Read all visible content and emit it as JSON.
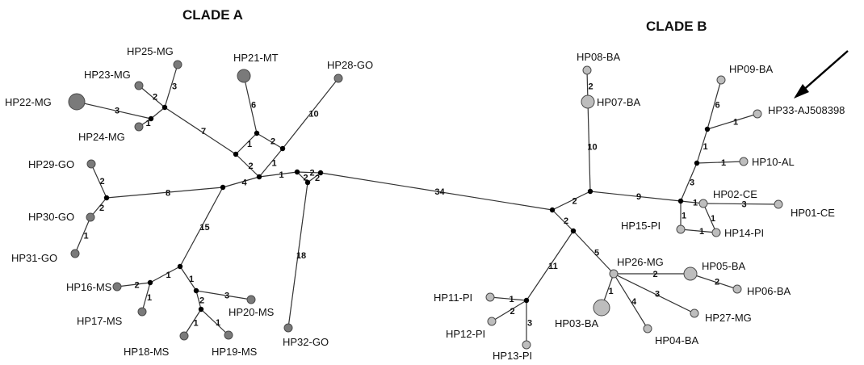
{
  "clades": [
    {
      "id": "cA",
      "label": "CLADE A"
    },
    {
      "id": "cB",
      "label": "CLADE B"
    }
  ],
  "colors": {
    "clade_a": "#7a7a7a",
    "clade_b": "#bdbdbd",
    "stroke": "#4a4a4a",
    "edge": "#333333"
  },
  "haplotypes": [
    {
      "id": "HP22-MG",
      "clade": "A",
      "freq": 3
    },
    {
      "id": "HP23-MG",
      "clade": "A",
      "freq": 1
    },
    {
      "id": "HP24-MG",
      "clade": "A",
      "freq": 1
    },
    {
      "id": "HP25-MG",
      "clade": "A",
      "freq": 1
    },
    {
      "id": "HP21-MT",
      "clade": "A",
      "freq": 2
    },
    {
      "id": "HP28-GO",
      "clade": "A",
      "freq": 1
    },
    {
      "id": "HP29-GO",
      "clade": "A",
      "freq": 1
    },
    {
      "id": "HP30-GO",
      "clade": "A",
      "freq": 1
    },
    {
      "id": "HP31-GO",
      "clade": "A",
      "freq": 1
    },
    {
      "id": "HP16-MS",
      "clade": "A",
      "freq": 1
    },
    {
      "id": "HP17-MS",
      "clade": "A",
      "freq": 1
    },
    {
      "id": "HP18-MS",
      "clade": "A",
      "freq": 1
    },
    {
      "id": "HP19-MS",
      "clade": "A",
      "freq": 1
    },
    {
      "id": "HP20-MS",
      "clade": "A",
      "freq": 1
    },
    {
      "id": "HP32-GO",
      "clade": "A",
      "freq": 1
    },
    {
      "id": "HP08-BA",
      "clade": "B",
      "freq": 1
    },
    {
      "id": "HP07-BA",
      "clade": "B",
      "freq": 2
    },
    {
      "id": "HP09-BA",
      "clade": "B",
      "freq": 1
    },
    {
      "id": "HP33-AJ508398",
      "clade": "B",
      "freq": 1
    },
    {
      "id": "HP10-AL",
      "clade": "B",
      "freq": 1
    },
    {
      "id": "HP02-CE",
      "clade": "B",
      "freq": 1
    },
    {
      "id": "HP01-CE",
      "clade": "B",
      "freq": 1
    },
    {
      "id": "HP15-PI",
      "clade": "B",
      "freq": 1
    },
    {
      "id": "HP14-PI",
      "clade": "B",
      "freq": 1
    },
    {
      "id": "HP26-MG",
      "clade": "B",
      "freq": 1
    },
    {
      "id": "HP05-BA",
      "clade": "B",
      "freq": 2
    },
    {
      "id": "HP06-BA",
      "clade": "B",
      "freq": 1
    },
    {
      "id": "HP27-MG",
      "clade": "B",
      "freq": 1
    },
    {
      "id": "HP04-BA",
      "clade": "B",
      "freq": 1
    },
    {
      "id": "HP03-BA",
      "clade": "B",
      "freq": 3
    },
    {
      "id": "HP11-PI",
      "clade": "B",
      "freq": 1
    },
    {
      "id": "HP12-PI",
      "clade": "B",
      "freq": 1
    },
    {
      "id": "HP13-PI",
      "clade": "B",
      "freq": 1
    }
  ],
  "edges": [
    {
      "a": "HP22-MG",
      "b": "hubAmg",
      "steps": "3"
    },
    {
      "a": "HP24-MG",
      "b": "hubAmg",
      "steps": "1"
    },
    {
      "a": "HP23-MG",
      "b": "hubMG",
      "steps": "2"
    },
    {
      "a": "HP25-MG",
      "b": "hubMG",
      "steps": "3"
    },
    {
      "a": "hubAmg",
      "b": "hubMG",
      "steps": ""
    },
    {
      "a": "hubMG",
      "b": "jA1",
      "steps": "7"
    },
    {
      "a": "jA1",
      "b": "jA2",
      "steps": "2"
    },
    {
      "a": "HP21-MT",
      "b": "jMT",
      "steps": "6"
    },
    {
      "a": "jMT",
      "b": "jA1",
      "steps": "1"
    },
    {
      "a": "jMT",
      "b": "jGO",
      "steps": "2"
    },
    {
      "a": "HP28-GO",
      "b": "jGO",
      "steps": "10"
    },
    {
      "a": "jGO",
      "b": "jA2",
      "steps": "1"
    },
    {
      "a": "HP29-GO",
      "b": "jGOs",
      "steps": "2"
    },
    {
      "a": "HP30-GO",
      "b": "jGOs",
      "steps": "2"
    },
    {
      "a": "HP31-GO",
      "b": "HP30-GO",
      "steps": "1"
    },
    {
      "a": "jGOs",
      "b": "jA3",
      "steps": "8"
    },
    {
      "a": "jA3",
      "b": "jA2",
      "steps": "4"
    },
    {
      "a": "jA3",
      "b": "jMS",
      "steps": "15"
    },
    {
      "a": "HP16-MS",
      "b": "jMS2",
      "steps": "2"
    },
    {
      "a": "HP17-MS",
      "b": "jMS2",
      "steps": "1"
    },
    {
      "a": "jMS2",
      "b": "jMS",
      "steps": "1"
    },
    {
      "a": "jMS",
      "b": "jMS3",
      "steps": "1"
    },
    {
      "a": "HP20-MS",
      "b": "jMS3",
      "steps": "3"
    },
    {
      "a": "jMS3",
      "b": "jMS4",
      "steps": "2"
    },
    {
      "a": "HP18-MS",
      "b": "jMS4",
      "steps": "1"
    },
    {
      "a": "HP19-MS",
      "b": "jMS4",
      "steps": "1"
    },
    {
      "a": "jA2",
      "b": "jA4",
      "steps": "1"
    },
    {
      "a": "jA4",
      "b": "jA5",
      "steps": "2"
    },
    {
      "a": "jA4",
      "b": "jA6",
      "steps": "2"
    },
    {
      "a": "jA5",
      "b": "jA6",
      "steps": "2"
    },
    {
      "a": "HP32-GO",
      "b": "jA6",
      "steps": "18"
    },
    {
      "a": "jA5",
      "b": "jB1",
      "steps": "34"
    },
    {
      "a": "jB1",
      "b": "jB2",
      "steps": "2"
    },
    {
      "a": "jB2",
      "b": "jB3",
      "steps": "9"
    },
    {
      "a": "HP07-BA",
      "b": "jB2",
      "steps": "10"
    },
    {
      "a": "HP08-BA",
      "b": "HP07-BA",
      "steps": "2"
    },
    {
      "a": "jB3",
      "b": "HP02-CE",
      "steps": "1"
    },
    {
      "a": "HP02-CE",
      "b": "HP01-CE",
      "steps": "3"
    },
    {
      "a": "HP02-CE",
      "b": "HP14-PI",
      "steps": "1"
    },
    {
      "a": "jB3",
      "b": "HP15-PI",
      "steps": "1"
    },
    {
      "a": "HP15-PI",
      "b": "HP14-PI",
      "steps": "1"
    },
    {
      "a": "jB3",
      "b": "jB4",
      "steps": "3"
    },
    {
      "a": "jB4",
      "b": "HP10-AL",
      "steps": "1"
    },
    {
      "a": "jB4",
      "b": "jB5",
      "steps": "1"
    },
    {
      "a": "HP09-BA",
      "b": "jB5",
      "steps": "6"
    },
    {
      "a": "jB5",
      "b": "HP33-AJ508398",
      "steps": "1"
    },
    {
      "a": "jB1",
      "b": "jB6",
      "steps": "2"
    },
    {
      "a": "jB6",
      "b": "jB7",
      "steps": "11"
    },
    {
      "a": "HP11-PI",
      "b": "jB7",
      "steps": "1"
    },
    {
      "a": "HP12-PI",
      "b": "jB7",
      "steps": "2"
    },
    {
      "a": "HP13-PI",
      "b": "jB7",
      "steps": "3"
    },
    {
      "a": "jB6",
      "b": "HP26-MG",
      "steps": "5"
    },
    {
      "a": "HP26-MG",
      "b": "HP03-BA",
      "steps": "1"
    },
    {
      "a": "HP26-MG",
      "b": "HP04-BA",
      "steps": "4"
    },
    {
      "a": "HP26-MG",
      "b": "HP27-MG",
      "steps": "3"
    },
    {
      "a": "HP26-MG",
      "b": "HP05-BA",
      "steps": "2"
    },
    {
      "a": "HP05-BA",
      "b": "HP06-BA",
      "steps": "2"
    }
  ]
}
